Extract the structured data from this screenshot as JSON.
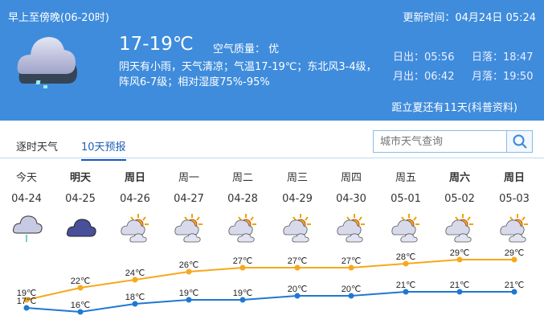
{
  "header": {
    "period": "早上至傍晚(06-20时)",
    "update_time": "更新时间：04月24日 05:24",
    "temperature": "17-19℃",
    "air_quality": "空气质量： 优",
    "description": "阴天有小雨，天气清凉；气温17-19℃；东北风3-4级，阵风6-7级；相对湿度75%-95%",
    "sunrise": "日出：05:56",
    "sunset": "日落：18:47",
    "moonrise": "月出：06:42",
    "moonset": "月落：19:50",
    "countdown": "距立夏还有11天(科普资料)",
    "icon": "cloud-rain-icon"
  },
  "tabs": [
    {
      "label": "逐时天气",
      "active": false
    },
    {
      "label": "10天预报",
      "active": true
    }
  ],
  "search": {
    "placeholder": "城市天气查询",
    "icon": "search-icon"
  },
  "colors": {
    "header_bg": "#3f8cdc",
    "high": "#f7a81b",
    "low": "#1f78d1"
  },
  "days": [
    {
      "weekday": "今天",
      "date": "04-24",
      "icon": "cloud-rain-icon",
      "bold": false
    },
    {
      "weekday": "明天",
      "date": "04-25",
      "icon": "overcast-icon",
      "bold": true
    },
    {
      "weekday": "周日",
      "date": "04-26",
      "icon": "partly-cloudy-icon",
      "bold": true
    },
    {
      "weekday": "周一",
      "date": "04-27",
      "icon": "partly-cloudy-icon",
      "bold": false
    },
    {
      "weekday": "周二",
      "date": "04-28",
      "icon": "partly-cloudy-icon",
      "bold": false
    },
    {
      "weekday": "周三",
      "date": "04-29",
      "icon": "partly-cloudy-icon",
      "bold": false
    },
    {
      "weekday": "周四",
      "date": "04-30",
      "icon": "partly-cloudy-icon",
      "bold": false
    },
    {
      "weekday": "周五",
      "date": "05-01",
      "icon": "partly-cloudy-icon",
      "bold": false
    },
    {
      "weekday": "周六",
      "date": "05-02",
      "icon": "partly-cloudy-icon",
      "bold": true
    },
    {
      "weekday": "周日",
      "date": "05-03",
      "icon": "partly-cloudy-icon",
      "bold": true
    }
  ],
  "chart_data": {
    "type": "line",
    "categories": [
      "04-24",
      "04-25",
      "04-26",
      "04-27",
      "04-28",
      "04-29",
      "04-30",
      "05-01",
      "05-02",
      "05-03"
    ],
    "unit": "℃",
    "series": [
      {
        "values": [
          19,
          22,
          24,
          26,
          27,
          27,
          27,
          28,
          29,
          29
        ],
        "color": "#f7a81b"
      },
      {
        "values": [
          17,
          16,
          18,
          19,
          19,
          20,
          20,
          21,
          21,
          21
        ],
        "color": "#1f78d1"
      }
    ]
  }
}
